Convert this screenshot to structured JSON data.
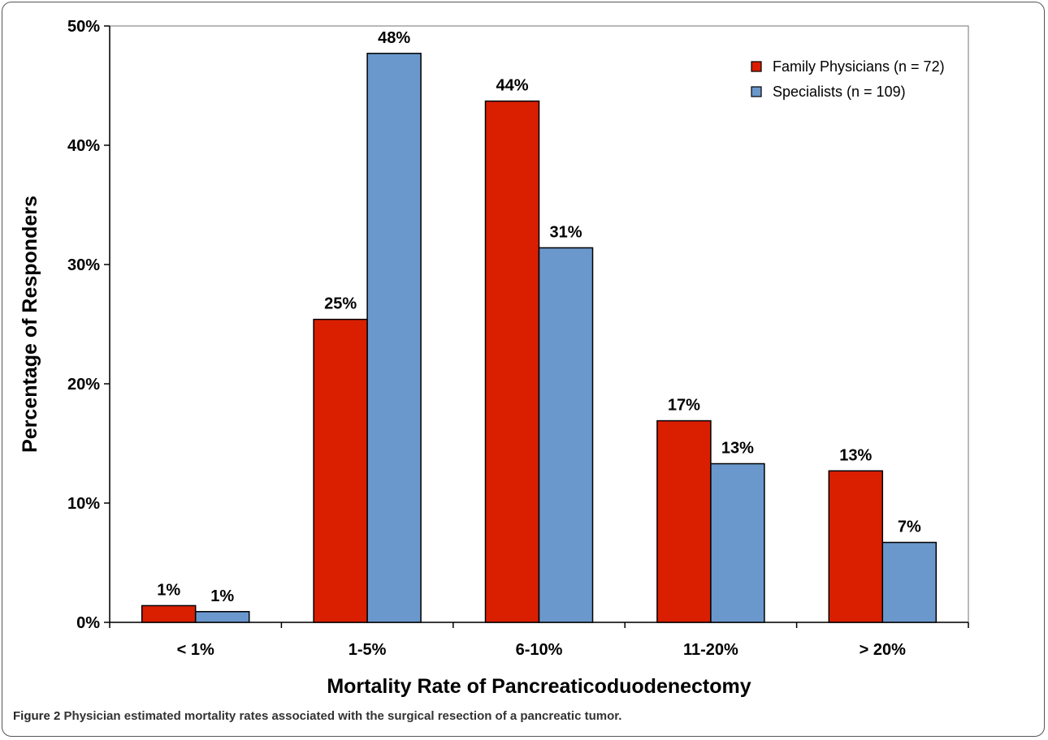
{
  "chart_data": {
    "type": "bar",
    "xlabel": "Mortality Rate of Pancreaticoduodenectomy",
    "ylabel": "Percentage of Responders",
    "categories": [
      "< 1%",
      "1-5%",
      "6-10%",
      "11-20%",
      "> 20%"
    ],
    "ylim": [
      0,
      50
    ],
    "yticks": [
      "0%",
      "10%",
      "20%",
      "30%",
      "40%",
      "50%"
    ],
    "grid": false,
    "legend_position": "top-right",
    "series": [
      {
        "name": "Family Physicians (n = 72)",
        "color": "#d91f00",
        "values": [
          1.4,
          25.4,
          43.7,
          16.9,
          12.7
        ],
        "labels": [
          "1%",
          "25%",
          "44%",
          "17%",
          "13%"
        ]
      },
      {
        "name": "Specialists (n = 109)",
        "color": "#6a98cc",
        "values": [
          0.9,
          47.7,
          31.4,
          13.3,
          6.7
        ],
        "labels": [
          "1%",
          "48%",
          "31%",
          "13%",
          "7%"
        ]
      }
    ]
  },
  "caption": {
    "label": "Figure 2",
    "text": "Physician estimated mortality rates associated with the surgical resection of a pancreatic tumor."
  }
}
